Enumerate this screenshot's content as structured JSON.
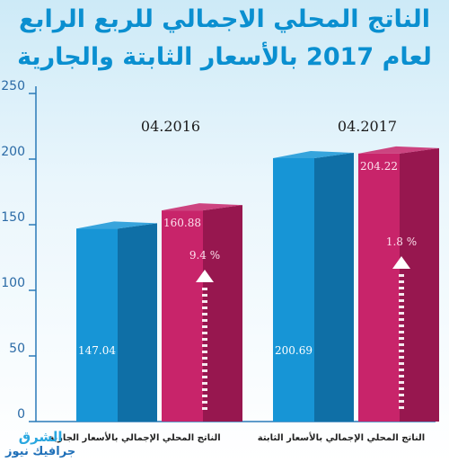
{
  "chart_data": {
    "type": "bar",
    "title_line1": "الناتج المحلي الاجمالي للربع الرابع",
    "title_line2": "لعام 2017 بالأسعار الثابتة والجارية",
    "ylim": [
      0,
      250
    ],
    "yticks": [
      0,
      50,
      100,
      150,
      200,
      250
    ],
    "grid": false,
    "groups": [
      {
        "label": "04.2016",
        "bars": [
          {
            "series": "constant",
            "value": 147.04,
            "label": "147.04"
          },
          {
            "series": "current",
            "value": 160.88,
            "label": "160.88"
          }
        ],
        "growth": "9.4 %"
      },
      {
        "label": "04.2017",
        "bars": [
          {
            "series": "constant",
            "value": 200.69,
            "label": "200.69"
          },
          {
            "series": "current",
            "value": 204.22,
            "label": "204.22"
          }
        ],
        "growth": "1.8 %"
      }
    ],
    "category_labels": [
      "الناتج المحلي الإجمالي بالأسعار الجارية",
      "الناتج المحلي الإجمالي بالأسعار الثابتة"
    ],
    "colors": {
      "constant": "#1795d6",
      "constant_side": "#0f6fa6",
      "current": "#c8246a",
      "current_side": "#97174f",
      "axis": "#2a7ab8"
    }
  },
  "brand": {
    "line1": "الشرق",
    "line2": "جرافيك نيوز"
  }
}
